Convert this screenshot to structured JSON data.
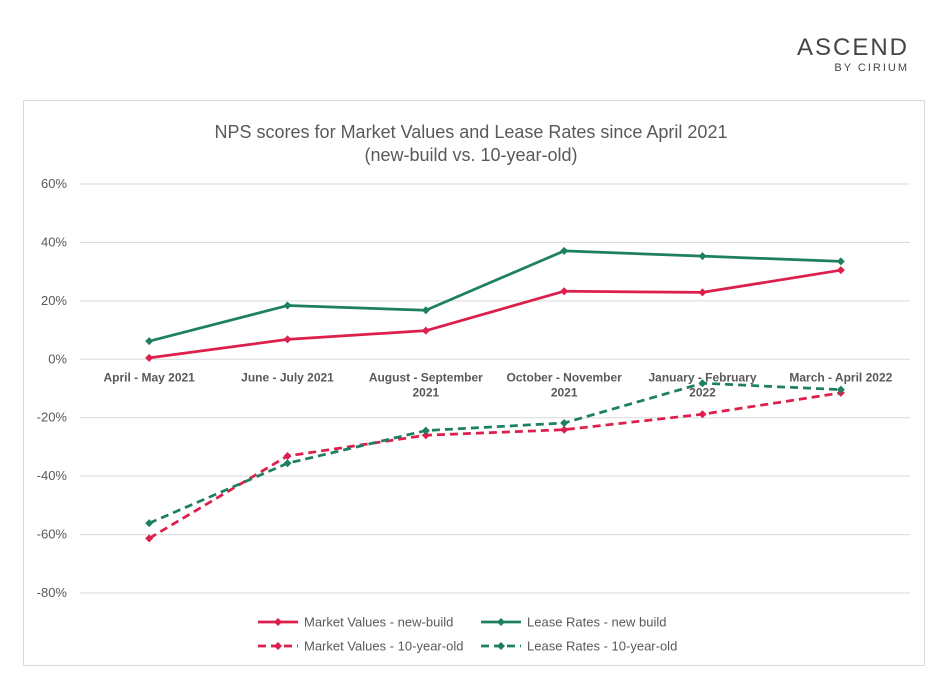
{
  "logo": {
    "main": "ASCEND",
    "sub": "BY CIRIUM"
  },
  "chart_data": {
    "type": "line",
    "title": "NPS scores for Market Values and Lease Rates since April 2021",
    "subtitle": "(new-build vs. 10-year-old)",
    "xlabel": "",
    "ylabel": "",
    "categories": [
      [
        "April - May 2021"
      ],
      [
        "June - July 2021"
      ],
      [
        "August - September",
        "2021"
      ],
      [
        "October - November",
        "2021"
      ],
      [
        "January - February",
        "2022"
      ],
      [
        "March - April 2022"
      ]
    ],
    "ylim": [
      -80,
      60
    ],
    "yticks": [
      60,
      40,
      20,
      0,
      -20,
      -40,
      -60,
      -80
    ],
    "ytick_labels": [
      "60%",
      "40%",
      "20%",
      "0%",
      "-20%",
      "-40%",
      "-60%",
      "-80%"
    ],
    "grid": true,
    "legend_position": "bottom",
    "series": [
      {
        "name": "Market Values - new-build",
        "color": "#dc1f4b",
        "dashed": false,
        "values": [
          0.5,
          6.8,
          9.8,
          23.3,
          22.9,
          30.5
        ]
      },
      {
        "name": "Lease Rates - new build",
        "color": "#1e8060",
        "dashed": false,
        "values": [
          6.2,
          18.4,
          16.8,
          37.1,
          35.3,
          33.5
        ]
      },
      {
        "name": "Market Values - 10-year-old",
        "color": "#dc1f4b",
        "dashed": true,
        "values": [
          -61.3,
          -33.1,
          -26.0,
          -24.1,
          -18.8,
          -11.5
        ]
      },
      {
        "name": "Lease Rates - 10-year-old",
        "color": "#1e8060",
        "dashed": true,
        "values": [
          -56.1,
          -35.6,
          -24.4,
          -21.8,
          -8.2,
          -10.4
        ]
      }
    ]
  }
}
